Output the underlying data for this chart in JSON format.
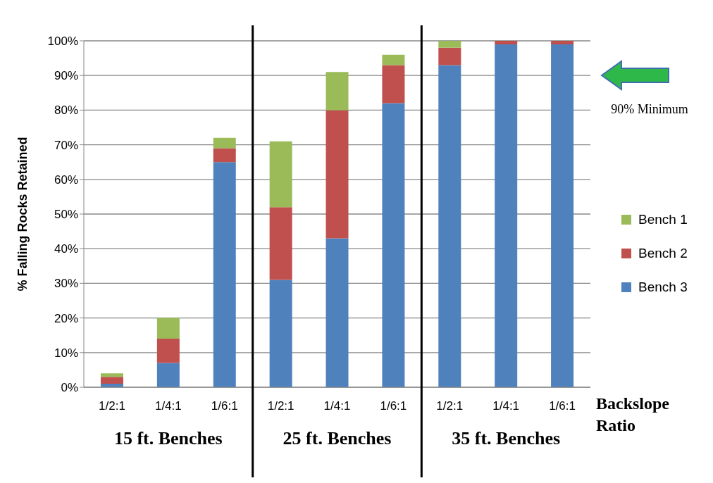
{
  "chart_data": {
    "type": "bar",
    "stacked": true,
    "categories": [
      "1/2:1",
      "1/4:1",
      "1/6:1",
      "1/2:1",
      "1/4:1",
      "1/6:1",
      "1/2:1",
      "1/4:1",
      "1/6:1"
    ],
    "series": [
      {
        "name": "Bench 3",
        "color": "#4f81bd",
        "values": [
          1,
          7,
          65,
          31,
          43,
          82,
          93,
          99,
          99
        ]
      },
      {
        "name": "Bench 2",
        "color": "#c0504d",
        "values": [
          2,
          7,
          4,
          21,
          37,
          11,
          5,
          1,
          1
        ]
      },
      {
        "name": "Bench 1",
        "color": "#9bbb59",
        "values": [
          1,
          6,
          3,
          19,
          11,
          3,
          2,
          0,
          0
        ]
      }
    ],
    "ylabel": "% Falling Rocks Retained",
    "xlabel": "Backslope Ratio",
    "ylim": [
      0,
      100
    ],
    "yticks": [
      {
        "value": 0,
        "label": "0%"
      },
      {
        "value": 10,
        "label": "10%"
      },
      {
        "value": 20,
        "label": "20%"
      },
      {
        "value": 30,
        "label": "30%"
      },
      {
        "value": 40,
        "label": "40%"
      },
      {
        "value": 50,
        "label": "50%"
      },
      {
        "value": 60,
        "label": "60%"
      },
      {
        "value": 70,
        "label": "70%"
      },
      {
        "value": 80,
        "label": "80%"
      },
      {
        "value": 90,
        "label": "90%"
      },
      {
        "value": 100,
        "label": "100%"
      }
    ],
    "grid": "y",
    "legend": "right",
    "annotations": [
      "90% Minimum",
      "15 ft. Benches",
      "25 ft. Benches",
      "35 ft. Benches"
    ]
  }
}
